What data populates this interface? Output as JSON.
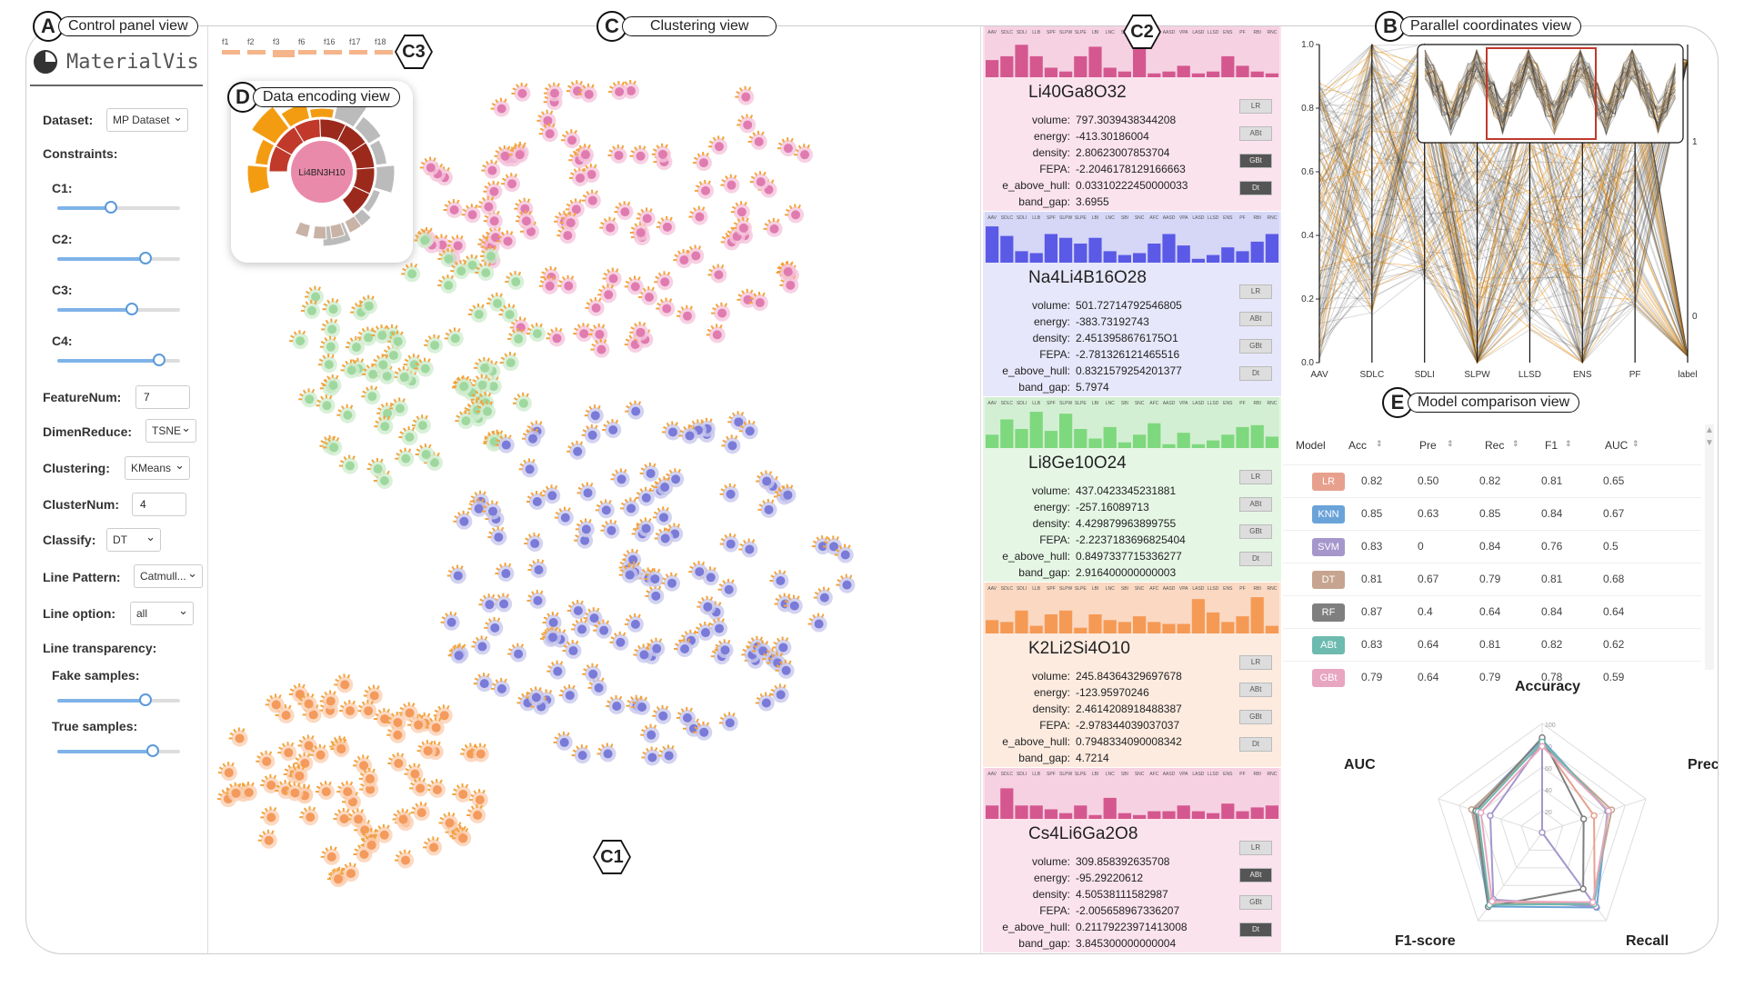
{
  "labels": {
    "A": {
      "letter": "A",
      "text": "Control panel view"
    },
    "B": {
      "letter": "B",
      "text": "Parallel coordinates view"
    },
    "C": {
      "letter": "C",
      "text": "Clustering view"
    },
    "D": {
      "letter": "D",
      "text": "Data encoding view"
    },
    "E": {
      "letter": "E",
      "text": "Model comparison view"
    },
    "C1": "C1",
    "C2": "C2",
    "C3": "C3"
  },
  "control_panel": {
    "app_name": "MaterialVis",
    "dataset_label": "Dataset:",
    "dataset_value": "MP Dataset",
    "constraints_label": "Constraints:",
    "constraints": [
      {
        "label": "C1:",
        "value": 0.44
      },
      {
        "label": "C2:",
        "value": 0.72
      },
      {
        "label": "C3:",
        "value": 0.61
      },
      {
        "label": "C4:",
        "value": 0.83
      }
    ],
    "featurenum_label": "FeatureNum:",
    "featurenum_value": "7",
    "dimenreduce_label": "DimenReduce:",
    "dimenreduce_value": "TSNE",
    "clustering_label": "Clustering:",
    "clustering_value": "KMeans",
    "clusternum_label": "ClusterNum:",
    "clusternum_value": "4",
    "classify_label": "Classify:",
    "classify_value": "DT",
    "linepattern_label": "Line Pattern:",
    "linepattern_value": "Catmull...",
    "lineoption_label": "Line option:",
    "lineoption_value": "all",
    "linetransparency_label": "Line transparency:",
    "fake_label": "Fake samples:",
    "fake_value": 0.72,
    "true_label": "True samples:",
    "true_value": 0.78
  },
  "feature_legend": [
    "f1",
    "f2",
    "f3",
    "f6",
    "f16",
    "f17",
    "f18"
  ],
  "encoding": {
    "center_label": "Li4BN3H10"
  },
  "colors": {
    "pink": "#f6d9e6",
    "pinkbar": "#d4588f",
    "blue": "#dcdcf7",
    "bluebar": "#5a5ae6",
    "green": "#dcf3dc",
    "greenbar": "#7ed87e",
    "orange": "#fde3d3",
    "orangebar": "#f59a55"
  },
  "mini_axes": [
    "AAV",
    "SDLC",
    "SDLI",
    "LLB",
    "SPF",
    "SLPW",
    "SLPE",
    "LBI",
    "LNC",
    "SBI",
    "SNC",
    "AFC",
    "AASD",
    "VPA",
    "LASD",
    "LLSD",
    "ENS",
    "PF",
    "RBI",
    "RNC"
  ],
  "cards": [
    {
      "name": "Li40Ga8O32",
      "theme": "pink",
      "bars": [
        0.45,
        0.55,
        0.85,
        0.55,
        0.25,
        0.15,
        0.55,
        0.8,
        0.25,
        0.15,
        0.9,
        0.1,
        0.15,
        0.3,
        0.1,
        0.15,
        0.55,
        0.3,
        0.15,
        0.1
      ],
      "props": [
        [
          "volume:",
          "797.3039438344208"
        ],
        [
          "energy:",
          "-413.30186004"
        ],
        [
          "density:",
          "2.80623007853704"
        ],
        [
          "FEPA:",
          "-2.2046178129166663"
        ],
        [
          "e_above_hull:",
          "0.03310222450000033"
        ],
        [
          "band_gap:",
          "3.6955"
        ]
      ],
      "models": [
        [
          "LR",
          false
        ],
        [
          "ABt",
          false
        ],
        [
          "GBt",
          true
        ],
        [
          "Dt",
          true
        ]
      ]
    },
    {
      "name": "Na4Li4B16O28",
      "theme": "blue",
      "bars": [
        0.95,
        0.7,
        0.3,
        0.25,
        0.75,
        0.65,
        0.5,
        0.65,
        0.3,
        0.2,
        0.25,
        0.5,
        0.75,
        0.45,
        0.1,
        0.2,
        0.4,
        0.3,
        0.55,
        0.75
      ],
      "props": [
        [
          "volume:",
          "501.72714792546805"
        ],
        [
          "energy:",
          "-383.73192743"
        ],
        [
          "density:",
          "2.4513958676175O1"
        ],
        [
          "FEPA:",
          "-2.781326121465516"
        ],
        [
          "e_above_hull:",
          "0.8321579254201377"
        ],
        [
          "band_gap:",
          "5.7974"
        ]
      ],
      "models": [
        [
          "LR",
          false
        ],
        [
          "ABt",
          false
        ],
        [
          "GBt",
          false
        ],
        [
          "Dt",
          false
        ]
      ]
    },
    {
      "name": "Li8Ge10O24",
      "theme": "green",
      "bars": [
        0.35,
        0.75,
        0.5,
        0.95,
        0.45,
        0.9,
        0.5,
        0.25,
        0.55,
        0.15,
        0.35,
        0.65,
        0.1,
        0.4,
        0.1,
        0.2,
        0.35,
        0.55,
        0.6,
        0.3
      ],
      "props": [
        [
          "volume:",
          "437.0423345231881"
        ],
        [
          "energy:",
          "-257.16089713"
        ],
        [
          "density:",
          "4.429879963899755"
        ],
        [
          "FEPA:",
          "-2.2237183696825404"
        ],
        [
          "e_above_hull:",
          "0.8497337715336277"
        ],
        [
          "band_gap:",
          "2.916400000000003"
        ]
      ],
      "models": [
        [
          "LR",
          false
        ],
        [
          "ABt",
          false
        ],
        [
          "GBt",
          false
        ],
        [
          "Dt",
          false
        ]
      ]
    },
    {
      "name": "K2Li2Si4O10",
      "theme": "orange",
      "bars": [
        0.35,
        0.3,
        0.6,
        0.2,
        0.5,
        0.6,
        0.15,
        0.5,
        0.35,
        0.3,
        0.45,
        0.3,
        0.25,
        0.25,
        0.9,
        0.55,
        0.3,
        0.45,
        0.95,
        0.2
      ],
      "props": [
        [
          "volume:",
          "245.84364329697678"
        ],
        [
          "energy:",
          "-123.95970246"
        ],
        [
          "density:",
          "2.4614208918488387"
        ],
        [
          "FEPA:",
          "-2.978344039037037"
        ],
        [
          "e_above_hull:",
          "0.7948334090008342"
        ],
        [
          "band_gap:",
          "4.7214"
        ]
      ],
      "models": [
        [
          "LR",
          false
        ],
        [
          "ABt",
          false
        ],
        [
          "GBt",
          false
        ],
        [
          "Dt",
          false
        ]
      ]
    },
    {
      "name": "Cs4Li6Ga2O8",
      "theme": "pink",
      "bars": [
        0.35,
        0.8,
        0.35,
        0.35,
        0.25,
        0.15,
        0.35,
        0.1,
        0.55,
        0.15,
        0.1,
        0.2,
        0.2,
        0.35,
        0.2,
        0.15,
        0.4,
        0.2,
        0.3,
        0.35
      ],
      "props": [
        [
          "volume:",
          "309.858392635708"
        ],
        [
          "energy:",
          "-95.29220612"
        ],
        [
          "density:",
          "4.50538111582987"
        ],
        [
          "FEPA:",
          "-2.005658967336207"
        ],
        [
          "e_above_hull:",
          "0.21179223971413008"
        ],
        [
          "band_gap:",
          "3.845300000000004"
        ]
      ],
      "models": [
        [
          "LR",
          false
        ],
        [
          "ABt",
          true
        ],
        [
          "GBt",
          false
        ],
        [
          "Dt",
          true
        ]
      ]
    }
  ],
  "pcp": {
    "axes": [
      "AAV",
      "SDLC",
      "SDLI",
      "SLPW",
      "LLSD",
      "ENS",
      "PF",
      "label"
    ],
    "yticks": [
      "0.0",
      "0.2",
      "0.4",
      "0.6",
      "0.8",
      "1.0"
    ],
    "label_ticks": [
      "1",
      "0"
    ]
  },
  "model_table": {
    "headers": [
      "Model",
      "Acc",
      "Pre",
      "Rec",
      "F1",
      "AUC"
    ],
    "rows": [
      {
        "model": "LR",
        "color": "#e8a08e",
        "acc": "0.82",
        "pre": "0.50",
        "rec": "0.82",
        "f1": "0.81",
        "auc": "0.65"
      },
      {
        "model": "KNN",
        "color": "#6aa3d8",
        "acc": "0.85",
        "pre": "0.63",
        "rec": "0.85",
        "f1": "0.84",
        "auc": "0.67"
      },
      {
        "model": "SVM",
        "color": "#a597cc",
        "acc": "0.83",
        "pre": "0",
        "rec": "0.84",
        "f1": "0.76",
        "auc": "0.5"
      },
      {
        "model": "DT",
        "color": "#c6a48f",
        "acc": "0.81",
        "pre": "0.67",
        "rec": "0.79",
        "f1": "0.81",
        "auc": "0.68"
      },
      {
        "model": "RF",
        "color": "#7f7f7f",
        "acc": "0.87",
        "pre": "0.4",
        "rec": "0.64",
        "f1": "0.84",
        "auc": "0.64"
      },
      {
        "model": "ABt",
        "color": "#6dbab0",
        "acc": "0.83",
        "pre": "0.64",
        "rec": "0.81",
        "f1": "0.82",
        "auc": "0.62"
      },
      {
        "model": "GBt",
        "color": "#e8a6c0",
        "acc": "0.79",
        "pre": "0.64",
        "rec": "0.79",
        "f1": "0.78",
        "auc": "0.59"
      }
    ]
  },
  "radar": {
    "axes": [
      "Accuracy",
      "Precision",
      "Recall",
      "F1-score",
      "AUC"
    ],
    "ticks": [
      "100",
      "80",
      "60",
      "40",
      "20"
    ]
  }
}
